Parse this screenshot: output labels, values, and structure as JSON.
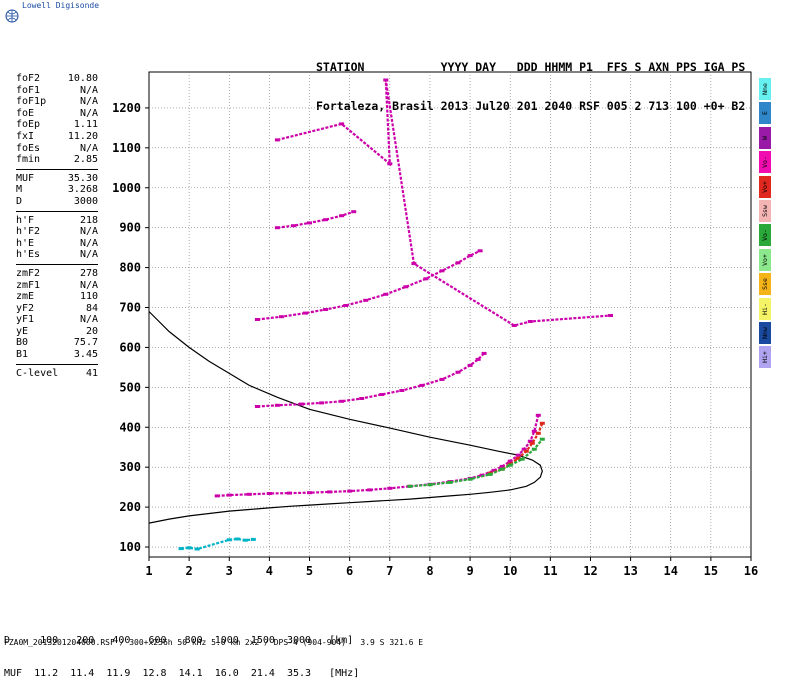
{
  "brand": "Lowell Digisonde",
  "header": {
    "line1": "STATION           YYYY DAY   DDD HHMM P1  FFS S AXN PPS IGA PS",
    "line2": "Fortaleza, Brasil 2013 Jul20 201 2040 RSF 005 2 713 100 +0+ B2"
  },
  "params": [
    {
      "label": "foF2",
      "value": "10.80"
    },
    {
      "label": "foF1",
      "value": "N/A"
    },
    {
      "label": "foF1p",
      "value": "N/A"
    },
    {
      "label": "foE",
      "value": "N/A"
    },
    {
      "label": "foEp",
      "value": "1.11"
    },
    {
      "label": "fxI",
      "value": "11.20"
    },
    {
      "label": "foEs",
      "value": "N/A"
    },
    {
      "label": "fmin",
      "value": "2.85"
    },
    {
      "sep": true
    },
    {
      "label": "MUF",
      "value": "35.30"
    },
    {
      "label": "M",
      "value": "3.268"
    },
    {
      "label": "D",
      "value": "3000"
    },
    {
      "sep": true
    },
    {
      "label": "h'F",
      "value": "218"
    },
    {
      "label": "h'F2",
      "value": "N/A"
    },
    {
      "label": "h'E",
      "value": "N/A"
    },
    {
      "label": "h'Es",
      "value": "N/A"
    },
    {
      "sep": true
    },
    {
      "label": "zmF2",
      "value": "278"
    },
    {
      "label": "zmF1",
      "value": "N/A"
    },
    {
      "label": "zmE",
      "value": "110"
    },
    {
      "label": "yF2",
      "value": "84"
    },
    {
      "label": "yF1",
      "value": "N/A"
    },
    {
      "label": "yE",
      "value": "20"
    },
    {
      "label": "B0",
      "value": "75.7"
    },
    {
      "label": "B1",
      "value": "3.45"
    },
    {
      "sep": true
    },
    {
      "label": "C-level",
      "value": "41"
    }
  ],
  "legend": [
    {
      "label": "Nne",
      "color": "#66f0f0"
    },
    {
      "label": "E",
      "color": "#2f86c8"
    },
    {
      "label": "W",
      "color": "#9a1aa8"
    },
    {
      "label": "Vo-",
      "color": "#f00cae"
    },
    {
      "label": "Vo+",
      "color": "#e0281e"
    },
    {
      "label": "Ssw",
      "color": "#f4b4b4"
    },
    {
      "label": "Vo-",
      "color": "#2aa83a"
    },
    {
      "label": "Vo+",
      "color": "#8ce88c"
    },
    {
      "label": "Sse",
      "color": "#f4b418"
    },
    {
      "label": "Hi-",
      "color": "#f4f466"
    },
    {
      "label": "Nnw",
      "color": "#1a4aa0"
    },
    {
      "label": "Hi+",
      "color": "#b0a4f0"
    }
  ],
  "bottom_table": {
    "row1": "D     100   200   400   600   800  1000  1500  3000   [km]",
    "row2": "MUF  11.2  11.4  11.9  12.8  14.1  16.0  21.4  35.3   [MHz]"
  },
  "footer": "FZA0M_2013201204000.RSF / 300+x256h 50 kHz 5.0 km 2x2 / DPS-4 (904-904)   3.9 S 321.6 E",
  "chart_data": {
    "type": "scatter",
    "xlim": [
      1,
      16
    ],
    "ylim": [
      75,
      1290
    ],
    "x_ticks": [
      1,
      2,
      3,
      4,
      5,
      6,
      7,
      8,
      9,
      10,
      11,
      12,
      13,
      14,
      15,
      16
    ],
    "y_ticks": [
      100,
      200,
      300,
      400,
      500,
      600,
      700,
      800,
      900,
      1000,
      1100,
      1200
    ],
    "grid": "dotted",
    "profile_curve": {
      "x": [
        1.0,
        1.5,
        2.0,
        2.5,
        3.0,
        3.5,
        4.0,
        4.5,
        5.0,
        5.5,
        6.0,
        6.5,
        7.0,
        7.5,
        8.0,
        8.5,
        9.0,
        9.5,
        10.0,
        10.4,
        10.6,
        10.75,
        10.8,
        10.75,
        10.55,
        10.2,
        9.7,
        9.0,
        8.0,
        7.0,
        6.0,
        5.0,
        4.2,
        3.5,
        3.0,
        2.5,
        2.0,
        1.5,
        1.0
      ],
      "y": [
        160,
        170,
        178,
        184,
        190,
        194,
        198,
        202,
        205,
        208,
        211,
        214,
        217,
        220,
        224,
        228,
        232,
        237,
        243,
        252,
        262,
        275,
        290,
        305,
        318,
        330,
        340,
        355,
        375,
        398,
        420,
        445,
        475,
        505,
        535,
        565,
        600,
        640,
        690
      ]
    },
    "traces": [
      {
        "name": "O-F2 first hop",
        "color": "#cc00aa",
        "x": [
          2.7,
          3.0,
          3.5,
          4.0,
          4.5,
          5.0,
          5.5,
          6.0,
          6.5,
          7.0,
          7.5,
          8.0,
          8.5,
          9.0,
          9.3,
          9.6,
          9.8,
          10.0,
          10.2,
          10.35,
          10.5,
          10.6,
          10.7
        ],
        "y": [
          228,
          230,
          232,
          234,
          235,
          236,
          238,
          240,
          243,
          247,
          252,
          257,
          264,
          272,
          280,
          292,
          302,
          315,
          330,
          345,
          365,
          390,
          430
        ]
      },
      {
        "name": "O-F2 second hop",
        "color": "#cc00aa",
        "x": [
          3.7,
          4.2,
          4.8,
          5.3,
          5.8,
          6.3,
          6.8,
          7.3,
          7.8,
          8.3,
          8.7,
          9.0,
          9.2,
          9.35
        ],
        "y": [
          452,
          455,
          458,
          461,
          465,
          472,
          482,
          492,
          505,
          520,
          538,
          555,
          570,
          585
        ]
      },
      {
        "name": "O-F2 third hop",
        "color": "#cc00aa",
        "x": [
          3.7,
          4.3,
          4.9,
          5.4,
          5.9,
          6.4,
          6.9,
          7.4,
          7.9,
          8.3,
          8.7,
          9.0,
          9.25
        ],
        "y": [
          670,
          677,
          686,
          695,
          705,
          718,
          733,
          752,
          772,
          792,
          812,
          830,
          842
        ]
      },
      {
        "name": "O-F2 fourth hop",
        "color": "#cc00aa",
        "x": [
          4.2,
          4.6,
          5.0,
          5.4,
          5.8,
          6.1
        ],
        "y": [
          900,
          905,
          912,
          920,
          930,
          940
        ]
      },
      {
        "name": "X-F2",
        "color": "#e0281e",
        "x": [
          9.5,
          9.8,
          10.0,
          10.2,
          10.4,
          10.55,
          10.7,
          10.8
        ],
        "y": [
          285,
          295,
          308,
          322,
          340,
          360,
          385,
          410
        ]
      },
      {
        "name": "green",
        "color": "#2aa83a",
        "x": [
          7.5,
          8.0,
          8.5,
          9.0,
          9.5,
          9.8,
          10.0,
          10.3,
          10.6,
          10.8
        ],
        "y": [
          252,
          256,
          262,
          270,
          282,
          295,
          305,
          320,
          345,
          370
        ]
      },
      {
        "name": "low echoes",
        "color": "#00b4c8",
        "x": [
          1.8,
          2.0,
          2.2,
          3.0,
          3.2,
          3.4,
          3.6
        ],
        "y": [
          96,
          98,
          95,
          118,
          120,
          117,
          119
        ]
      },
      {
        "name": "isolated",
        "color": "#cc00aa",
        "x": [
          4.2,
          5.8,
          7.0,
          6.9,
          7.6,
          10.1,
          10.5,
          12.5
        ],
        "y": [
          1120,
          1160,
          1060,
          1270,
          810,
          655,
          665,
          680
        ]
      }
    ]
  }
}
